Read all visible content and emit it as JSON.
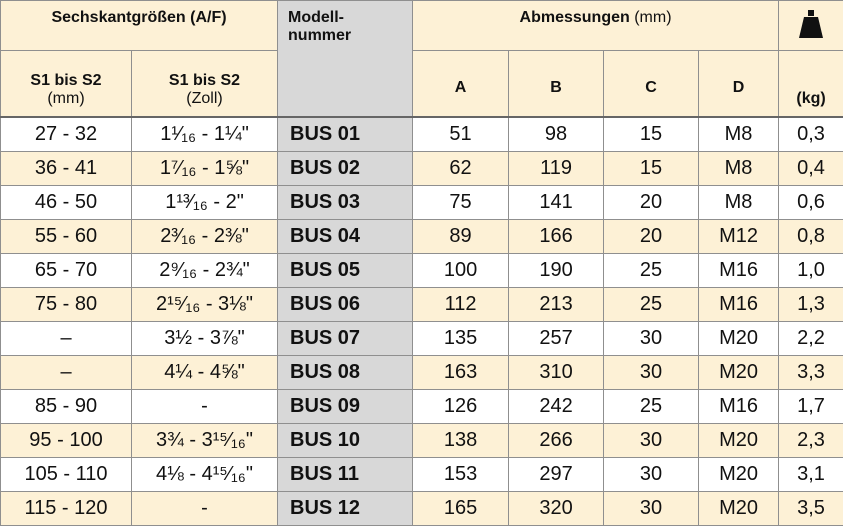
{
  "header": {
    "sizes": "Sechskantgrößen (A/F)",
    "model": [
      "Modell-",
      "nummer"
    ],
    "dimensions": "Abmessungen",
    "dimensions_unit": "(mm)",
    "sub": [
      [
        "S1 bis S2",
        "(mm)"
      ],
      [
        "S1 bis S2",
        "(Zoll)"
      ]
    ],
    "columns": [
      "A",
      "B",
      "C",
      "D"
    ],
    "weight_unit": "(kg)"
  },
  "table": {
    "rows": [
      [
        "27 - 32",
        "1¹⁄₁₆ - 1¼\"",
        "BUS 01",
        "51",
        "98",
        "15",
        "M8",
        "0,3"
      ],
      [
        "36 - 41",
        "1⁷⁄₁₆ - 1⅝\"",
        "BUS 02",
        "62",
        "119",
        "15",
        "M8",
        "0,4"
      ],
      [
        "46 - 50",
        "1¹³⁄₁₆ - 2\"",
        "BUS 03",
        "75",
        "141",
        "20",
        "M8",
        "0,6"
      ],
      [
        "55 - 60",
        "2³⁄₁₆ - 2⅜\"",
        "BUS 04",
        "89",
        "166",
        "20",
        "M12",
        "0,8"
      ],
      [
        "65 - 70",
        "2⁹⁄₁₆ - 2¾\"",
        "BUS 05",
        "100",
        "190",
        "25",
        "M16",
        "1,0"
      ],
      [
        "75 - 80",
        "2¹⁵⁄₁₆ - 3⅛\"",
        "BUS 06",
        "112",
        "213",
        "25",
        "M16",
        "1,3"
      ],
      [
        "–",
        "3½ - 3⅞\"",
        "BUS 07",
        "135",
        "257",
        "30",
        "M20",
        "2,2"
      ],
      [
        "–",
        "4¼ - 4⅝\"",
        "BUS 08",
        "163",
        "310",
        "30",
        "M20",
        "3,3"
      ],
      [
        "85 - 90",
        "-",
        "BUS 09",
        "126",
        "242",
        "25",
        "M16",
        "1,7"
      ],
      [
        "95 - 100",
        "3¾ - 3¹⁵⁄₁₆\"",
        "BUS 10",
        "138",
        "266",
        "30",
        "M20",
        "2,3"
      ],
      [
        "105 - 110",
        "4⅛ - 4¹⁵⁄₁₆\"",
        "BUS 11",
        "153",
        "297",
        "30",
        "M20",
        "3,1"
      ],
      [
        "115 - 120",
        "-",
        "BUS 12",
        "165",
        "320",
        "30",
        "M20",
        "3,5"
      ]
    ]
  }
}
